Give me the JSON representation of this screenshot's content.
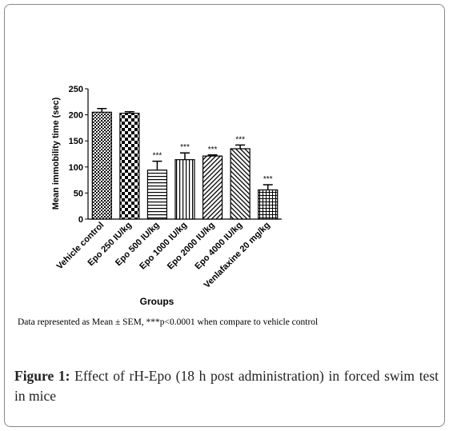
{
  "chart_data": {
    "type": "bar",
    "y_label": "Mean immobility time (sec)",
    "x_label": "Groups",
    "categories": [
      "Vehicle control",
      "Epo 250 IU/kg",
      "Epo 500 IU/kg",
      "Epo 1000 IU/kg",
      "Epo 2000 IU/kg",
      "Epo 4000 IU/kg",
      "Venlafaxine 20 mg/kg"
    ],
    "values": [
      205,
      203,
      94,
      114,
      121,
      135,
      56
    ],
    "errors": [
      7,
      3,
      17,
      13,
      2,
      7,
      10
    ],
    "significance": [
      null,
      null,
      "***",
      "***",
      "***",
      "***",
      "***"
    ],
    "color": "#000000",
    "ylim": [
      0,
      250
    ],
    "yticks": [
      0,
      50,
      100,
      150,
      200,
      250
    ]
  },
  "footnote": "Data represented as Mean ± SEM, ***p<0.0001 when compare to vehicle control",
  "caption": {
    "label": "Figure 1:",
    "text": "Effect of rH-Epo (18 h post administration) in forced swim test in mice"
  }
}
